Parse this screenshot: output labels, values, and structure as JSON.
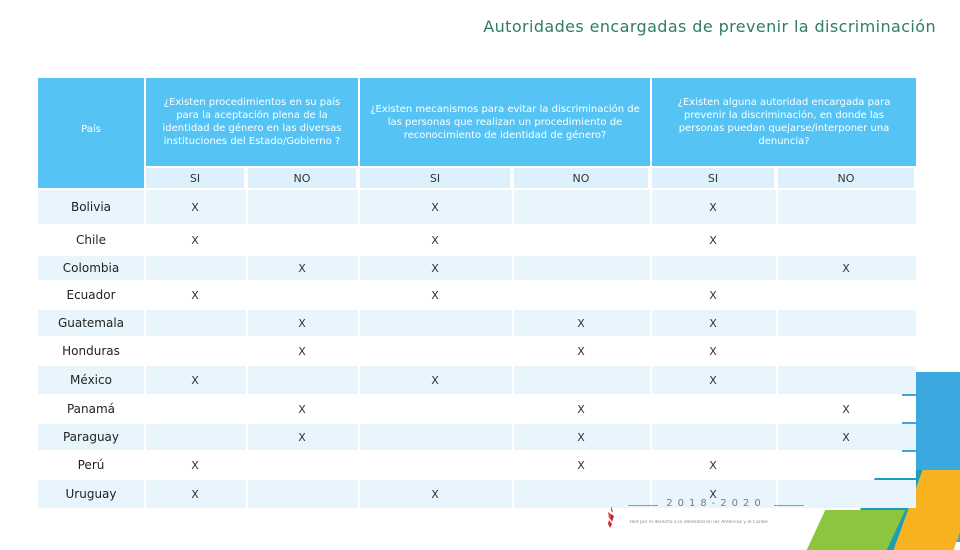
{
  "title": "Autoridades encargadas de prevenir la discriminación",
  "headers": {
    "country": "País",
    "q1": "¿Existen procedimientos en su país para la aceptación plena de la identidad de género en las diversas instituciones del Estado/Gobierno ?",
    "q2": "¿Existen mecanismos para evitar la discriminación de las personas que realizan un procedimiento de reconocimiento de identidad de género?",
    "q3": "¿Existen alguna autoridad encargada para prevenir la discriminación, en donde las personas puedan quejarse/interponer una denuncia?"
  },
  "subheaders": [
    "SI",
    "NO",
    "SI",
    "NO",
    "SI",
    "NO"
  ],
  "rows": [
    {
      "country": "Bolivia",
      "marks": [
        "X",
        "",
        "X",
        "",
        "X",
        ""
      ]
    },
    {
      "country": "Chile",
      "marks": [
        "X",
        "",
        "X",
        "",
        "X",
        ""
      ]
    },
    {
      "country": "Colombia",
      "marks": [
        "",
        "X",
        "X",
        "",
        "",
        "X"
      ]
    },
    {
      "country": "Ecuador",
      "marks": [
        "X",
        "",
        "X",
        "",
        "X",
        ""
      ]
    },
    {
      "country": "Guatemala",
      "marks": [
        "",
        "X",
        "",
        "X",
        "X",
        ""
      ]
    },
    {
      "country": "Honduras",
      "marks": [
        "",
        "X",
        "",
        "X",
        "X",
        ""
      ]
    },
    {
      "country": "México",
      "marks": [
        "X",
        "",
        "X",
        "",
        "X",
        ""
      ]
    },
    {
      "country": "Panamá",
      "marks": [
        "",
        "X",
        "",
        "X",
        "",
        "X"
      ]
    },
    {
      "country": "Paraguay",
      "marks": [
        "",
        "X",
        "",
        "X",
        "",
        "X"
      ]
    },
    {
      "country": "Perú",
      "marks": [
        "X",
        "",
        "",
        "X",
        "X",
        ""
      ]
    },
    {
      "country": "Uruguay",
      "marks": [
        "X",
        "",
        "X",
        "",
        "X",
        ""
      ]
    }
  ],
  "logo": {
    "years": "2018-2020",
    "subtitle": "Red por el derecho a la identidad en las Américas y el Caribe"
  },
  "colors": {
    "header": "#55c4f5",
    "title": "#2e7d64",
    "row_light": "#e8f5fd"
  }
}
